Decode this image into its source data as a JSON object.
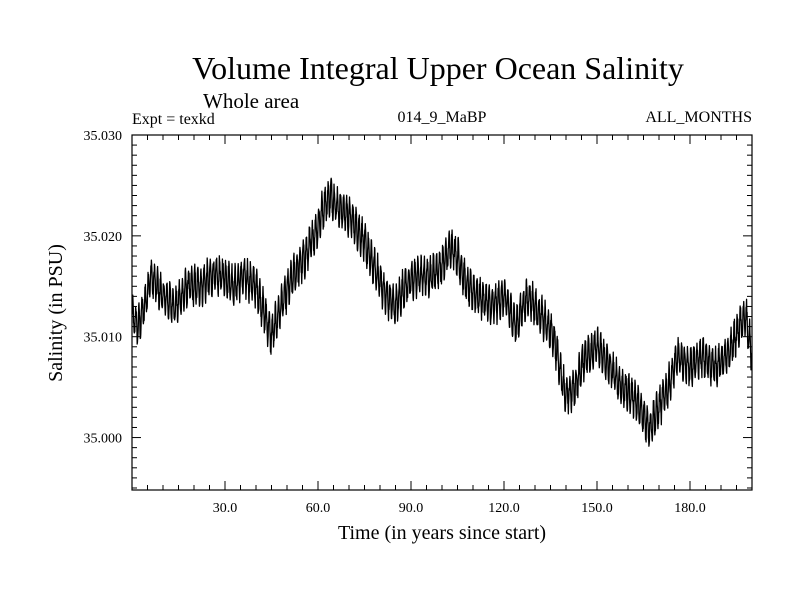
{
  "chart_data": {
    "type": "line",
    "title": "Volume Integral Upper Ocean Salinity",
    "subtitle": "Whole area",
    "experiment": "Expt = texkd",
    "run_id": "014_9_MaBP",
    "months": "ALL_MONTHS",
    "xlabel": "Time (in years since start)",
    "ylabel": "Salinity (in PSU)",
    "xlim": [
      0,
      200
    ],
    "ylim": [
      34.9948,
      35.03
    ],
    "x_ticks": [
      30,
      60,
      90,
      120,
      150,
      180
    ],
    "x_tick_labels": [
      "30.0",
      "60.0",
      "90.0",
      "120.0",
      "150.0",
      "180.0"
    ],
    "y_ticks": [
      35.0,
      35.01,
      35.02,
      35.03
    ],
    "y_tick_labels": [
      "35.000",
      "35.010",
      "35.020",
      "35.030"
    ],
    "series": [
      {
        "name": "salinity",
        "color": "#000000",
        "trend_x": [
          0,
          2,
          4,
          6,
          8,
          10,
          14,
          18,
          22,
          26,
          30,
          33,
          36,
          40,
          42,
          44,
          45,
          46,
          48,
          52,
          56,
          60,
          62,
          64,
          66,
          70,
          74,
          78,
          82,
          85,
          88,
          92,
          96,
          100,
          103,
          105,
          108,
          112,
          116,
          120,
          124,
          126,
          128,
          132,
          136,
          138,
          140,
          143,
          146,
          150,
          154,
          158,
          162,
          165,
          167,
          170,
          173,
          176,
          180,
          184,
          188,
          192,
          196,
          198,
          200
        ],
        "trend_y": [
          35.012,
          35.011,
          35.013,
          35.016,
          35.015,
          35.014,
          35.013,
          35.015,
          35.015,
          35.016,
          35.016,
          35.015,
          35.016,
          35.015,
          35.013,
          35.011,
          35.01,
          35.011,
          35.013,
          35.016,
          35.018,
          35.021,
          35.023,
          35.024,
          35.023,
          35.022,
          35.02,
          35.017,
          35.014,
          35.013,
          35.015,
          35.016,
          35.016,
          35.017,
          35.019,
          35.018,
          35.015,
          35.014,
          35.013,
          35.014,
          35.011,
          35.013,
          35.014,
          35.012,
          35.01,
          35.007,
          35.004,
          35.005,
          35.008,
          35.009,
          35.007,
          35.005,
          35.004,
          35.002,
          35.001,
          35.003,
          35.005,
          35.008,
          35.007,
          35.008,
          35.007,
          35.008,
          35.011,
          35.012,
          35.008
        ],
        "noise_amplitude": 0.0022
      }
    ]
  }
}
